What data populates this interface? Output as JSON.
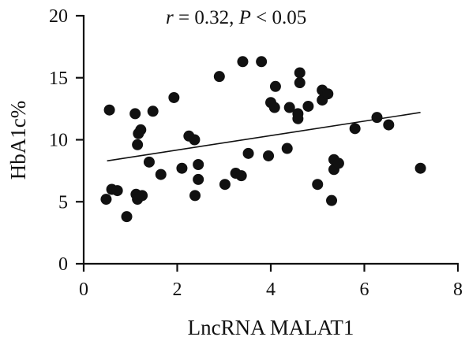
{
  "chart_data": {
    "type": "scatter",
    "title": "",
    "xlabel": "LncRNA MALAT1",
    "ylabel": "HbA1c%",
    "xlim": [
      0,
      8
    ],
    "ylim": [
      0,
      20
    ],
    "xticks": [
      "0",
      "2",
      "4",
      "6",
      "8"
    ],
    "yticks": [
      "0",
      "5",
      "10",
      "15",
      "20"
    ],
    "grid": false,
    "annotation": {
      "r_symbol": "r",
      "r_text": " = 0.32, ",
      "p_symbol": "P",
      "p_text": " < 0.05"
    },
    "trendline": {
      "x": [
        0.5,
        7.2
      ],
      "y": [
        8.3,
        12.2
      ]
    },
    "points": [
      {
        "x": 0.48,
        "y": 5.2
      },
      {
        "x": 0.55,
        "y": 12.4
      },
      {
        "x": 0.6,
        "y": 6.0
      },
      {
        "x": 0.72,
        "y": 5.9
      },
      {
        "x": 0.92,
        "y": 3.8
      },
      {
        "x": 1.1,
        "y": 12.1
      },
      {
        "x": 1.12,
        "y": 5.6
      },
      {
        "x": 1.15,
        "y": 5.2
      },
      {
        "x": 1.15,
        "y": 9.6
      },
      {
        "x": 1.17,
        "y": 10.5
      },
      {
        "x": 1.22,
        "y": 10.8
      },
      {
        "x": 1.25,
        "y": 5.5
      },
      {
        "x": 1.4,
        "y": 8.2
      },
      {
        "x": 1.48,
        "y": 12.3
      },
      {
        "x": 1.65,
        "y": 7.2
      },
      {
        "x": 1.93,
        "y": 13.4
      },
      {
        "x": 2.1,
        "y": 7.7
      },
      {
        "x": 2.25,
        "y": 10.3
      },
      {
        "x": 2.37,
        "y": 10.0
      },
      {
        "x": 2.38,
        "y": 5.5
      },
      {
        "x": 2.45,
        "y": 8.0
      },
      {
        "x": 2.45,
        "y": 6.8
      },
      {
        "x": 2.9,
        "y": 15.1
      },
      {
        "x": 3.02,
        "y": 6.4
      },
      {
        "x": 3.25,
        "y": 7.3
      },
      {
        "x": 3.37,
        "y": 7.1
      },
      {
        "x": 3.4,
        "y": 16.3
      },
      {
        "x": 3.52,
        "y": 8.9
      },
      {
        "x": 3.8,
        "y": 16.3
      },
      {
        "x": 3.95,
        "y": 8.7
      },
      {
        "x": 4.0,
        "y": 13.0
      },
      {
        "x": 4.08,
        "y": 12.6
      },
      {
        "x": 4.1,
        "y": 14.3
      },
      {
        "x": 4.35,
        "y": 9.3
      },
      {
        "x": 4.4,
        "y": 12.6
      },
      {
        "x": 4.58,
        "y": 12.1
      },
      {
        "x": 4.58,
        "y": 11.7
      },
      {
        "x": 4.62,
        "y": 15.4
      },
      {
        "x": 4.62,
        "y": 14.6
      },
      {
        "x": 4.8,
        "y": 12.7
      },
      {
        "x": 5.0,
        "y": 6.4
      },
      {
        "x": 5.1,
        "y": 13.2
      },
      {
        "x": 5.1,
        "y": 14.0
      },
      {
        "x": 5.22,
        "y": 13.7
      },
      {
        "x": 5.3,
        "y": 5.1
      },
      {
        "x": 5.35,
        "y": 8.4
      },
      {
        "x": 5.35,
        "y": 7.6
      },
      {
        "x": 5.45,
        "y": 8.1
      },
      {
        "x": 5.8,
        "y": 10.9
      },
      {
        "x": 6.27,
        "y": 11.8
      },
      {
        "x": 6.52,
        "y": 11.2
      },
      {
        "x": 7.2,
        "y": 7.7
      }
    ]
  }
}
